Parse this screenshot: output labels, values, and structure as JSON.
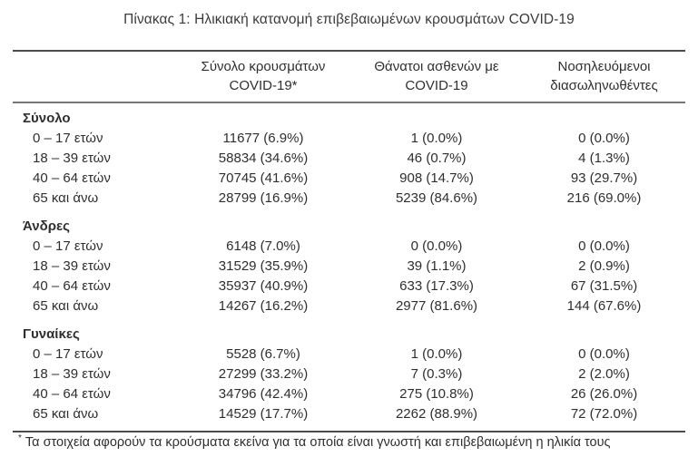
{
  "page": {
    "title": "Πίνακας 1: Ηλικιακή κατανομή επιβεβαιωμένων κρουσμάτων COVID-19"
  },
  "table": {
    "headers": {
      "cases": {
        "line1": "Σύνολο κρουσμάτων",
        "line2": "COVID-19*"
      },
      "deaths": {
        "line1": "Θάνατοι ασθενών με",
        "line2": "COVID-19"
      },
      "intubated": {
        "line1": "Νοσηλευόμενοι",
        "line2": "διασωληνωθέντες"
      }
    },
    "sections": [
      {
        "label": "Σύνολο",
        "rows": [
          {
            "age": "0 – 17 ετών",
            "cases": "11677 (6.9%)",
            "deaths": "1 (0.0%)",
            "intubated": "0 (0.0%)"
          },
          {
            "age": "18 – 39 ετών",
            "cases": "58834 (34.6%)",
            "deaths": "46 (0.7%)",
            "intubated": "4 (1.3%)"
          },
          {
            "age": "40 – 64 ετών",
            "cases": "70745 (41.6%)",
            "deaths": "908 (14.7%)",
            "intubated": "93 (29.7%)"
          },
          {
            "age": "65 και άνω",
            "cases": "28799 (16.9%)",
            "deaths": "5239 (84.6%)",
            "intubated": "216 (69.0%)"
          }
        ]
      },
      {
        "label": "Άνδρες",
        "rows": [
          {
            "age": "0 – 17 ετών",
            "cases": "6148 (7.0%)",
            "deaths": "0 (0.0%)",
            "intubated": "0 (0.0%)"
          },
          {
            "age": "18 – 39 ετών",
            "cases": "31529 (35.9%)",
            "deaths": "39 (1.1%)",
            "intubated": "2 (0.9%)"
          },
          {
            "age": "40 – 64 ετών",
            "cases": "35937 (40.9%)",
            "deaths": "633 (17.3%)",
            "intubated": "67 (31.5%)"
          },
          {
            "age": "65 και άνω",
            "cases": "14267 (16.2%)",
            "deaths": "2977 (81.6%)",
            "intubated": "144 (67.6%)"
          }
        ]
      },
      {
        "label": "Γυναίκες",
        "rows": [
          {
            "age": "0 – 17 ετών",
            "cases": "5528 (6.7%)",
            "deaths": "1 (0.0%)",
            "intubated": "0 (0.0%)"
          },
          {
            "age": "18 – 39 ετών",
            "cases": "27299 (33.2%)",
            "deaths": "7 (0.3%)",
            "intubated": "2 (2.0%)"
          },
          {
            "age": "40 – 64 ετών",
            "cases": "34796 (42.4%)",
            "deaths": "275 (10.8%)",
            "intubated": "26 (26.0%)"
          },
          {
            "age": "65 και άνω",
            "cases": "14529 (17.7%)",
            "deaths": "2262 (88.9%)",
            "intubated": "72 (72.0%)"
          }
        ]
      }
    ],
    "footnote": {
      "marker": "*",
      "text": "Τα στοιχεία αφορούν τα κρούσματα εκείνα για τα οποία είναι γνωστή και επιβεβαιωμένη η ηλικία τους"
    }
  }
}
